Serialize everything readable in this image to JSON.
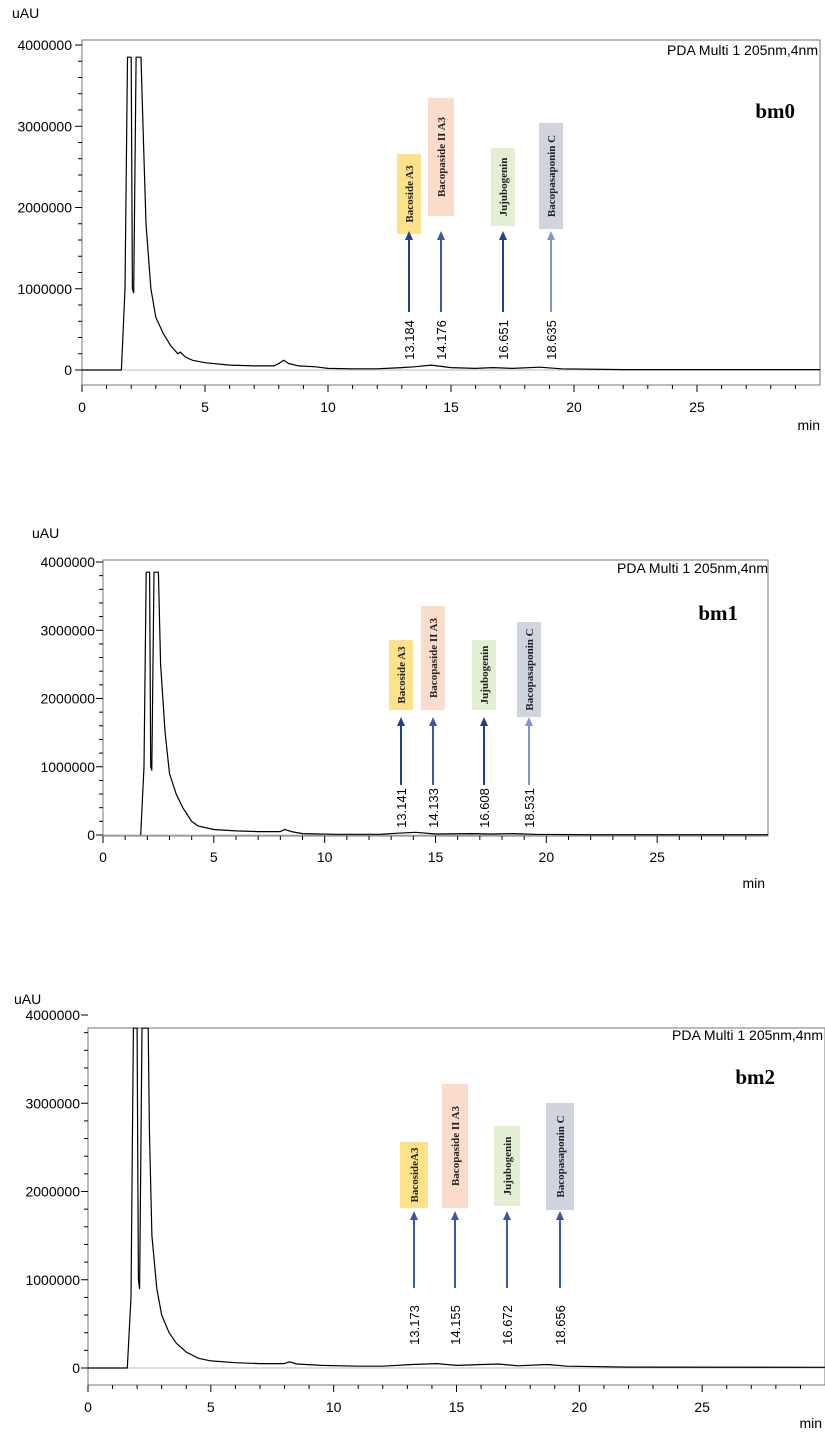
{
  "chart_data": [
    {
      "type": "line",
      "sample_label": "bm0",
      "detector_label": "PDA Multi 1 205nm,4nm",
      "ylabel": "uAU",
      "xlabel": "min",
      "xlim": [
        0,
        30
      ],
      "ylim": [
        0,
        4000000
      ],
      "x_ticks": [
        0,
        5,
        10,
        15,
        20,
        25
      ],
      "y_ticks": [
        0,
        1000000,
        2000000,
        3000000,
        4000000
      ],
      "y_tick_labels": [
        "0",
        "1000000",
        "2000000",
        "3000000",
        "4000000"
      ],
      "peaks": [
        {
          "rt_label": "13.184",
          "rt": 13.184,
          "compound": "Bacoside A3",
          "color": "#fde28a",
          "arrow": "#1f3f8f"
        },
        {
          "rt_label": "14.176",
          "rt": 14.176,
          "compound": "Bacopaside II A3",
          "color": "#fbdccb",
          "arrow": "#3a5aa0"
        },
        {
          "rt_label": "16.651",
          "rt": 16.651,
          "compound": "Jujubogenin",
          "color": "#e2efd3",
          "arrow": "#1f3f8f"
        },
        {
          "rt_label": "18.635",
          "rt": 18.635,
          "compound": "Bacopasaponin C",
          "color": "#d0d4de",
          "arrow": "#7f97c7"
        }
      ],
      "trace": [
        [
          0,
          0
        ],
        [
          1.6,
          0
        ],
        [
          1.75,
          1000000
        ],
        [
          1.85,
          3850000
        ],
        [
          2.0,
          3850000
        ],
        [
          2.05,
          1000000
        ],
        [
          2.1,
          950000
        ],
        [
          2.2,
          3850000
        ],
        [
          2.4,
          3850000
        ],
        [
          2.5,
          2800000
        ],
        [
          2.6,
          1800000
        ],
        [
          2.8,
          1000000
        ],
        [
          3.0,
          650000
        ],
        [
          3.3,
          450000
        ],
        [
          3.6,
          300000
        ],
        [
          3.9,
          200000
        ],
        [
          4.0,
          220000
        ],
        [
          4.2,
          160000
        ],
        [
          4.5,
          120000
        ],
        [
          5,
          90000
        ],
        [
          6,
          60000
        ],
        [
          7,
          50000
        ],
        [
          7.8,
          50000
        ],
        [
          8.0,
          80000
        ],
        [
          8.2,
          120000
        ],
        [
          8.4,
          80000
        ],
        [
          8.8,
          50000
        ],
        [
          9.5,
          40000
        ],
        [
          10,
          20000
        ],
        [
          11,
          15000
        ],
        [
          12,
          15000
        ],
        [
          13,
          30000
        ],
        [
          13.5,
          40000
        ],
        [
          14.2,
          60000
        ],
        [
          15,
          30000
        ],
        [
          16,
          20000
        ],
        [
          16.7,
          30000
        ],
        [
          17.5,
          20000
        ],
        [
          18.6,
          35000
        ],
        [
          19.5,
          15000
        ],
        [
          22,
          5000
        ],
        [
          30,
          5000
        ]
      ]
    },
    {
      "type": "line",
      "sample_label": "bm1",
      "detector_label": "PDA Multi 1 205nm,4nm",
      "ylabel": "uAU",
      "xlabel": "min",
      "xlim": [
        0,
        30
      ],
      "ylim": [
        0,
        4000000
      ],
      "x_ticks": [
        0,
        5,
        10,
        15,
        20,
        25
      ],
      "y_ticks": [
        0,
        1000000,
        2000000,
        3000000,
        4000000
      ],
      "y_tick_labels": [
        "0",
        "1000000",
        "2000000",
        "3000000",
        "4000000"
      ],
      "peaks": [
        {
          "rt_label": "13.141",
          "rt": 13.141,
          "compound": "Bacoside A3",
          "color": "#fde28a",
          "arrow": "#1f3f8f"
        },
        {
          "rt_label": "14.133",
          "rt": 14.133,
          "compound": "Bacopaside II A3",
          "color": "#fbdccb",
          "arrow": "#3a5aa0"
        },
        {
          "rt_label": "16.608",
          "rt": 16.608,
          "compound": "Jujubogenin",
          "color": "#e2efd3",
          "arrow": "#1f3f8f"
        },
        {
          "rt_label": "18.531",
          "rt": 18.531,
          "compound": "Bacopasaponin C",
          "color": "#d0d4de",
          "arrow": "#7f97c7"
        }
      ],
      "trace": [
        [
          1.7,
          0
        ],
        [
          1.85,
          1000000
        ],
        [
          1.95,
          3850000
        ],
        [
          2.1,
          3850000
        ],
        [
          2.15,
          1000000
        ],
        [
          2.2,
          950000
        ],
        [
          2.3,
          3850000
        ],
        [
          2.5,
          3850000
        ],
        [
          2.6,
          2500000
        ],
        [
          2.8,
          1500000
        ],
        [
          3.0,
          900000
        ],
        [
          3.3,
          600000
        ],
        [
          3.6,
          400000
        ],
        [
          3.8,
          300000
        ],
        [
          4.0,
          200000
        ],
        [
          4.3,
          130000
        ],
        [
          5,
          80000
        ],
        [
          6,
          60000
        ],
        [
          7,
          50000
        ],
        [
          8,
          50000
        ],
        [
          8.2,
          80000
        ],
        [
          8.5,
          50000
        ],
        [
          9,
          20000
        ],
        [
          10.5,
          10000
        ],
        [
          12.5,
          10000
        ],
        [
          13.2,
          25000
        ],
        [
          14.1,
          40000
        ],
        [
          15,
          15000
        ],
        [
          16.6,
          20000
        ],
        [
          17.5,
          15000
        ],
        [
          18.5,
          20000
        ],
        [
          19.5,
          10000
        ],
        [
          22,
          5000
        ],
        [
          30,
          5000
        ]
      ]
    },
    {
      "type": "line",
      "sample_label": "bm2",
      "detector_label": "PDA Multi 1 205nm,4nm",
      "ylabel": "uAU",
      "xlabel": "min",
      "xlim": [
        0,
        30
      ],
      "ylim": [
        0,
        4000000
      ],
      "x_ticks": [
        0,
        5,
        10,
        15,
        20,
        25
      ],
      "y_ticks": [
        0,
        1000000,
        2000000,
        3000000,
        4000000
      ],
      "y_tick_labels": [
        "0",
        "1000000",
        "2000000",
        "3000000",
        "4000000"
      ],
      "peaks": [
        {
          "rt_label": "13.173",
          "rt": 13.173,
          "compound": "BacosideA3",
          "color": "#fde28a",
          "arrow": "#3a5aa0"
        },
        {
          "rt_label": "14.155",
          "rt": 14.155,
          "compound": "Bacopaside II A3",
          "color": "#fbdccb",
          "arrow": "#3a5aa0"
        },
        {
          "rt_label": "16.672",
          "rt": 16.672,
          "compound": "Jujubogenin",
          "color": "#e2efd3",
          "arrow": "#3a5aa0"
        },
        {
          "rt_label": "18.656",
          "rt": 18.656,
          "compound": "Bacopasaponin C",
          "color": "#d0d4de",
          "arrow": "#3a5aa0"
        }
      ],
      "trace": [
        [
          0,
          0
        ],
        [
          1.6,
          0
        ],
        [
          1.75,
          800000
        ],
        [
          1.85,
          3850000
        ],
        [
          2.0,
          3850000
        ],
        [
          2.05,
          1000000
        ],
        [
          2.1,
          900000
        ],
        [
          2.2,
          3850000
        ],
        [
          2.45,
          3850000
        ],
        [
          2.5,
          2700000
        ],
        [
          2.6,
          1500000
        ],
        [
          2.8,
          900000
        ],
        [
          3.0,
          600000
        ],
        [
          3.3,
          400000
        ],
        [
          3.6,
          280000
        ],
        [
          4.0,
          180000
        ],
        [
          4.5,
          110000
        ],
        [
          5,
          80000
        ],
        [
          6,
          60000
        ],
        [
          7,
          50000
        ],
        [
          8,
          50000
        ],
        [
          8.2,
          70000
        ],
        [
          8.5,
          45000
        ],
        [
          9.5,
          30000
        ],
        [
          11,
          20000
        ],
        [
          12,
          20000
        ],
        [
          13.2,
          40000
        ],
        [
          14.2,
          50000
        ],
        [
          15,
          30000
        ],
        [
          16.7,
          45000
        ],
        [
          17.5,
          25000
        ],
        [
          18.7,
          40000
        ],
        [
          19.5,
          20000
        ],
        [
          22,
          10000
        ],
        [
          30,
          8000
        ]
      ]
    }
  ]
}
